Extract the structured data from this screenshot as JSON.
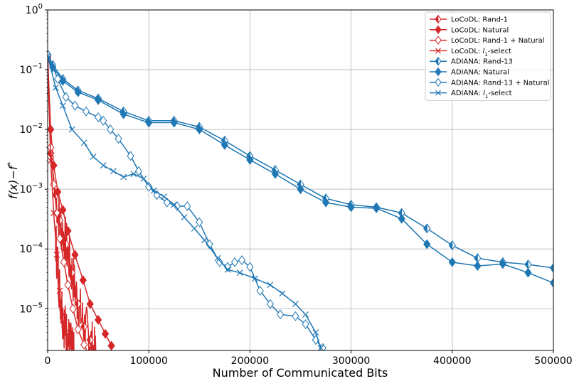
{
  "chart_data": {
    "type": "line",
    "xlabel": "Number of Communicated Bits",
    "ylabel_main": "f(x)",
    "ylabel_sep": "−",
    "ylabel_sub": "f",
    "ylabel_sup": "*",
    "xlim": [
      0,
      500000
    ],
    "ylim": [
      2e-06,
      1
    ],
    "yscale": "log",
    "grid": true,
    "legend_position": "top-right",
    "x_ticks": [
      {
        "value": 0,
        "label": "0"
      },
      {
        "value": 100000,
        "label": "100000"
      },
      {
        "value": 200000,
        "label": "200000"
      },
      {
        "value": 300000,
        "label": "300000"
      },
      {
        "value": 400000,
        "label": "400000"
      },
      {
        "value": 500000,
        "label": "500000"
      }
    ],
    "y_ticks": [
      {
        "value": 1,
        "base": "10",
        "exp": "0"
      },
      {
        "value": 0.1,
        "base": "10",
        "exp": "−1"
      },
      {
        "value": 0.01,
        "base": "10",
        "exp": "−2"
      },
      {
        "value": 0.001,
        "base": "10",
        "exp": "−3"
      },
      {
        "value": 0.0001,
        "base": "10",
        "exp": "−4"
      },
      {
        "value": 1e-05,
        "base": "10",
        "exp": "−5"
      }
    ],
    "colors": {
      "locodl": "#d62728",
      "adiana": "#1f77b4"
    },
    "series": [
      {
        "name": "LoCoDL: Rand-1",
        "color": "#d62728",
        "marker": "diamond-half",
        "noisy": true,
        "x": [
          0,
          3000,
          8000,
          12000,
          18000,
          24000,
          30000,
          36000,
          42000,
          48000
        ],
        "y": [
          0.15,
          0.004,
          0.0008,
          0.0003,
          0.00012,
          4e-05,
          1.2e-05,
          5e-06,
          3e-06,
          1.5e-06
        ]
      },
      {
        "name": "LoCoDL: Natural",
        "color": "#d62728",
        "marker": "diamond-filled",
        "noisy": false,
        "x": [
          0,
          3000,
          6000,
          10000,
          15000,
          20000,
          27000,
          35000,
          42000,
          50000,
          57000,
          63000
        ],
        "y": [
          0.17,
          0.01,
          0.0025,
          0.0009,
          0.00045,
          0.0002,
          8e-05,
          3e-05,
          1.2e-05,
          6.5e-06,
          3.8e-06,
          2.4e-06
        ]
      },
      {
        "name": "LoCoDL: Rand-1 + Natural",
        "color": "#d62728",
        "marker": "diamond-open",
        "noisy": false,
        "x": [
          0,
          3000,
          6000,
          9000,
          12000,
          16000,
          20000,
          25000,
          30000,
          36000,
          42000
        ],
        "y": [
          0.16,
          0.005,
          0.0012,
          0.0004,
          0.00015,
          6e-05,
          2.5e-05,
          1e-05,
          4.5e-06,
          2.5e-06,
          1.5e-06
        ]
      },
      {
        "name": "LoCoDL: l1-select",
        "label_main": "LoCoDL: ",
        "label_italic": "l",
        "label_sub": "1",
        "label_rest": "-select",
        "color": "#d62728",
        "marker": "x",
        "noisy": true,
        "x": [
          0,
          3000,
          6000,
          9000,
          12000,
          15000,
          18000,
          22000,
          26000
        ],
        "y": [
          0.15,
          0.003,
          0.0004,
          8e-05,
          2e-05,
          8e-06,
          4e-06,
          2.5e-06,
          1.5e-06
        ]
      },
      {
        "name": "ADIANA: Rand-13",
        "color": "#1f77b4",
        "marker": "diamond-half",
        "noisy": false,
        "x": [
          0,
          5000,
          15000,
          30000,
          50000,
          75000,
          100000,
          125000,
          150000,
          175000,
          200000,
          225000,
          250000,
          275000,
          300000,
          325000,
          350000,
          375000,
          400000,
          425000,
          450000,
          475000,
          500000
        ],
        "y": [
          0.18,
          0.12,
          0.07,
          0.045,
          0.033,
          0.02,
          0.014,
          0.014,
          0.011,
          0.0065,
          0.0036,
          0.0021,
          0.0012,
          0.0007,
          0.00055,
          0.0005,
          0.0004,
          0.00022,
          0.000115,
          7e-05,
          6e-05,
          5.5e-05,
          4.8e-05
        ]
      },
      {
        "name": "ADIANA: Natural",
        "color": "#1f77b4",
        "marker": "diamond-filled",
        "noisy": false,
        "x": [
          0,
          5000,
          15000,
          30000,
          50000,
          75000,
          100000,
          125000,
          150000,
          175000,
          200000,
          225000,
          250000,
          275000,
          300000,
          325000,
          350000,
          375000,
          400000,
          425000,
          450000,
          475000,
          500000
        ],
        "y": [
          0.17,
          0.11,
          0.065,
          0.042,
          0.031,
          0.018,
          0.013,
          0.013,
          0.01,
          0.0055,
          0.0031,
          0.0018,
          0.001,
          0.0006,
          0.0005,
          0.00048,
          0.00032,
          0.00012,
          6e-05,
          5.2e-05,
          5.6e-05,
          4e-05,
          2.7e-05
        ]
      },
      {
        "name": "ADIANA: Rand-13 + Natural",
        "color": "#1f77b4",
        "marker": "diamond-open",
        "noisy": false,
        "x": [
          0,
          10000,
          18000,
          27000,
          38000,
          50000,
          55000,
          62000,
          70000,
          82000,
          90000,
          100000,
          108000,
          118000,
          128000,
          138000,
          150000,
          160000,
          170000,
          178000,
          185000,
          192000,
          200000,
          210000,
          220000,
          230000,
          245000,
          255000,
          265000,
          272000
        ],
        "y": [
          0.18,
          0.07,
          0.035,
          0.025,
          0.02,
          0.016,
          0.014,
          0.01,
          0.007,
          0.0036,
          0.002,
          0.0011,
          0.0008,
          0.0006,
          0.00052,
          0.00052,
          0.00028,
          0.00012,
          6e-05,
          5e-05,
          6e-05,
          6.5e-05,
          5e-05,
          2e-05,
          1.2e-05,
          8e-06,
          7.5e-06,
          5.5e-06,
          3e-06,
          2.2e-06
        ]
      },
      {
        "name": "ADIANA: l1-select",
        "label_main": "ADIANA: ",
        "label_italic": "l",
        "label_sub": "1",
        "label_rest": "-select",
        "color": "#1f77b4",
        "marker": "x",
        "noisy": false,
        "x": [
          0,
          8000,
          15000,
          24000,
          36000,
          45000,
          55000,
          65000,
          75000,
          85000,
          95000,
          105000,
          115000,
          125000,
          135000,
          145000,
          155000,
          168000,
          178000,
          190000,
          205000,
          220000,
          232000,
          245000,
          255000,
          265000,
          270000
        ],
        "y": [
          0.17,
          0.05,
          0.025,
          0.01,
          0.006,
          0.0035,
          0.0025,
          0.002,
          0.0016,
          0.0018,
          0.0015,
          0.00095,
          0.00075,
          0.00055,
          0.00034,
          0.00022,
          0.00014,
          7e-05,
          4.5e-05,
          4e-05,
          3.2e-05,
          2.5e-05,
          1.8e-05,
          1.2e-05,
          8e-06,
          4e-06,
          2.2e-06
        ]
      }
    ]
  }
}
